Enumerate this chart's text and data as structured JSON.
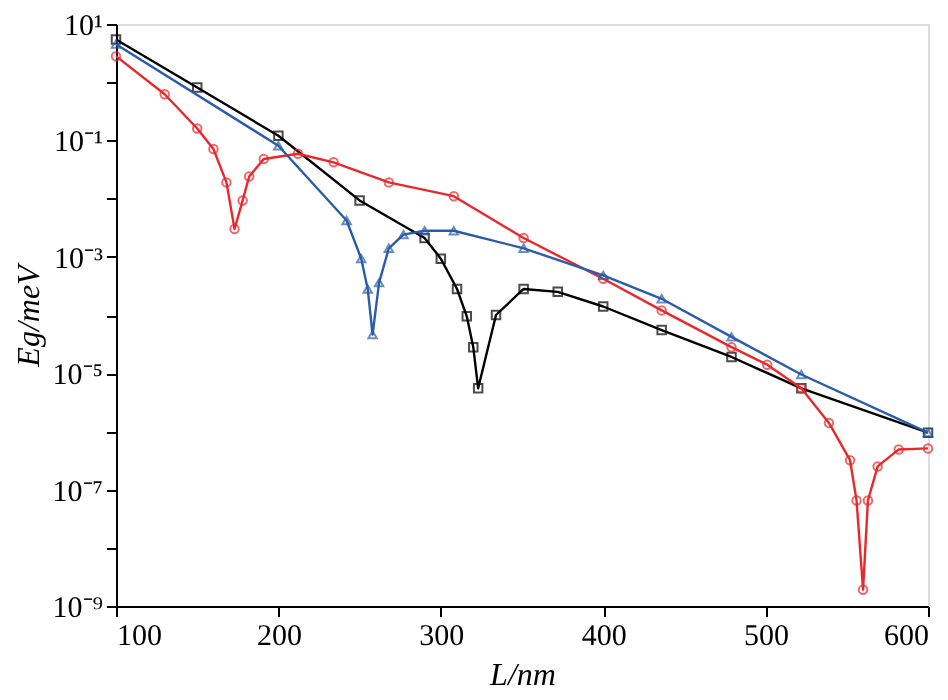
{
  "chart_data": {
    "type": "line",
    "xlabel": "L/nm",
    "ylabel": "Eg/meV",
    "log": "y",
    "grid": false,
    "xlim": [
      100,
      600
    ],
    "ylim": [
      1e-09,
      10
    ],
    "xticks": [
      100,
      200,
      300,
      400,
      500,
      600
    ],
    "yticks": [
      {
        "value": 10,
        "label": "10¹"
      },
      {
        "value": 1,
        "label": null
      },
      {
        "value": 0.1,
        "label": "10⁻¹"
      },
      {
        "value": 0.01,
        "label": null
      },
      {
        "value": 0.001,
        "label": "10⁻³"
      },
      {
        "value": 0.0001,
        "label": null
      },
      {
        "value": 1e-05,
        "label": "10⁻⁵"
      },
      {
        "value": 1e-06,
        "label": null
      },
      {
        "value": 1e-07,
        "label": "10⁻⁷"
      },
      {
        "value": 1e-08,
        "label": null
      },
      {
        "value": 1e-09,
        "label": "10⁻⁹"
      }
    ],
    "series": [
      {
        "color": "#000000",
        "marker": "square",
        "line_style": "solid",
        "x": [
          100,
          150,
          200,
          250,
          290,
          300,
          310,
          316,
          320,
          323,
          334,
          351,
          372,
          400,
          436,
          479,
          522,
          600
        ],
        "values": [
          5.4,
          0.81,
          0.12,
          0.0093,
          0.0021,
          0.00093,
          0.00028,
          9.5e-05,
          2.8e-05,
          5.5e-06,
          0.0001,
          0.00028,
          0.00025,
          0.00014,
          5.5e-05,
          1.9e-05,
          5.5e-06,
          9.5e-07
        ]
      },
      {
        "color": "#e8282b",
        "marker": "circle",
        "line_style": "solid",
        "x": [
          100,
          130,
          150,
          160,
          168,
          173,
          178,
          182,
          191,
          212,
          234,
          268,
          308,
          351,
          400,
          436,
          479,
          501,
          522,
          539,
          552,
          556,
          560,
          563,
          569,
          582,
          600
        ],
        "values": [
          2.8,
          0.62,
          0.16,
          0.071,
          0.019,
          0.003,
          0.0093,
          0.024,
          0.048,
          0.059,
          0.042,
          0.019,
          0.011,
          0.0021,
          0.00042,
          0.00012,
          2.8e-05,
          1.4e-05,
          5.5e-06,
          1.4e-06,
          3.2e-07,
          6.5e-08,
          1.9e-09,
          6.5e-08,
          2.5e-07,
          4.9e-07,
          5.1e-07
        ]
      },
      {
        "color": "#2a5caa",
        "marker": "triangle",
        "line_style": "solid",
        "x": [
          100,
          200,
          242,
          251,
          255,
          258,
          262,
          268,
          277,
          290,
          308,
          351,
          400,
          436,
          479,
          522,
          600
        ],
        "values": [
          4.5,
          0.081,
          0.0042,
          0.00093,
          0.00028,
          4.6e-05,
          0.00036,
          0.0014,
          0.0024,
          0.0028,
          0.0028,
          0.0014,
          0.00048,
          0.00019,
          4.2e-05,
          9.5e-06,
          9.5e-07
        ]
      }
    ]
  }
}
